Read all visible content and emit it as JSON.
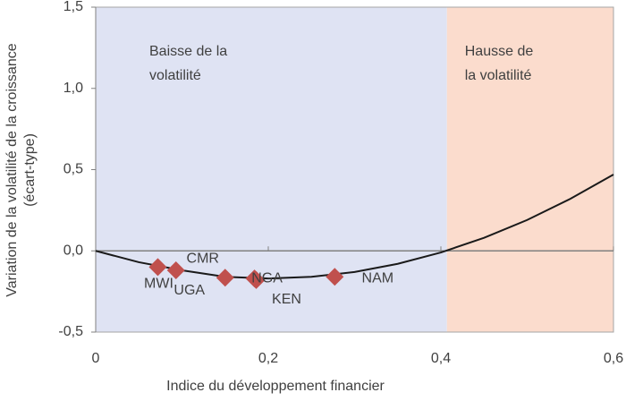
{
  "chart_data": {
    "type": "scatter",
    "x_label": "Indice du développement financier",
    "y_label": [
      "Variation de la volatilité de la croissance",
      "(écart-type)"
    ],
    "xlim": [
      0,
      0.6
    ],
    "ylim": [
      -0.5,
      1.5
    ],
    "xticks": [
      0,
      {
        "value": 0.2,
        "label": "0,2"
      },
      {
        "value": 0.4,
        "label": "0,4"
      },
      {
        "value": 0.6,
        "label": "0,6"
      }
    ],
    "yticks": [
      {
        "value": -0.5,
        "label": "-0,5"
      },
      {
        "value": 0,
        "label": "0,0"
      },
      {
        "value": 0.5,
        "label": "0,5"
      },
      {
        "value": 1,
        "label": "1,0"
      },
      {
        "value": 1.5,
        "label": "1,5"
      }
    ],
    "regions": [
      {
        "xlim": [
          0,
          0.407
        ],
        "color": "#dfe3f3",
        "label": [
          "Baisse de la",
          "volatilité"
        ]
      },
      {
        "xlim": [
          0.407,
          0.6
        ],
        "color": "#fbdccd",
        "label": [
          "Hausse de",
          "la volatilité"
        ]
      }
    ],
    "points": {
      "color": "#c0504d",
      "labels": [
        "MWI",
        "UGA",
        "CMR",
        "NGA",
        "KEN",
        "NAM"
      ],
      "x": [
        0.072,
        0.093,
        0.15,
        0.184,
        0.186,
        0.277
      ],
      "values": [
        -0.1,
        -0.12,
        -0.165,
        -0.17,
        -0.18,
        -0.16
      ]
    },
    "curve": {
      "color": "#1a1a1a",
      "x": [
        0,
        0.05,
        0.1,
        0.15,
        0.2,
        0.25,
        0.3,
        0.35,
        0.4,
        0.45,
        0.5,
        0.55,
        0.6
      ],
      "values": [
        0,
        -0.07,
        -0.12,
        -0.16,
        -0.17,
        -0.16,
        -0.13,
        -0.08,
        -0.01,
        0.08,
        0.19,
        0.32,
        0.47
      ]
    }
  }
}
